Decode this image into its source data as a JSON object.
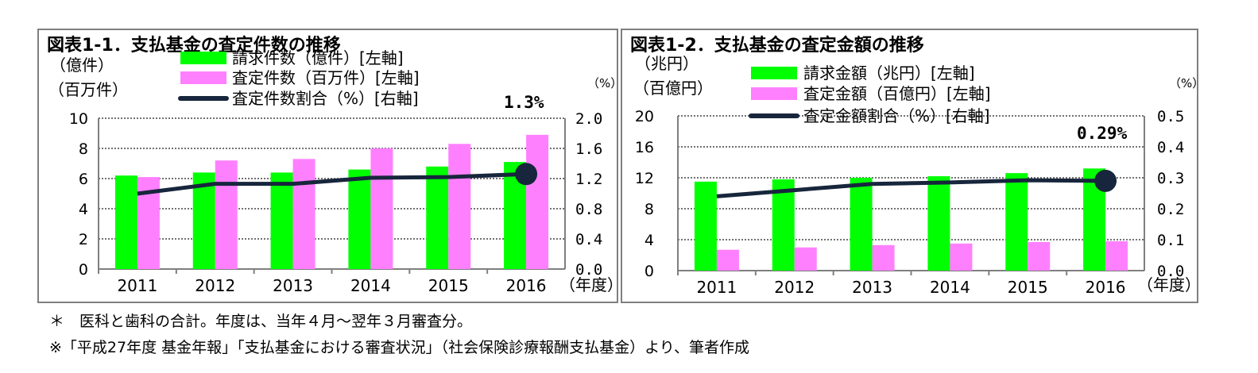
{
  "charts": [
    {
      "title": "図表1-1．支払基金の査定件数の推移",
      "left_unit_1": "（億件）",
      "left_unit_2": "（百万件）",
      "right_unit": "（%）",
      "xlabel": "（年度）",
      "left_ticks": [
        "10",
        "8",
        "6",
        "4",
        "2",
        "0"
      ],
      "right_ticks": [
        "2.0",
        "1.6",
        "1.2",
        "0.8",
        "0.4",
        "0.0"
      ],
      "annotation": "1.3%",
      "legend": [
        "請求件数（億件）[左軸]",
        "査定件数（百万件）[左軸]",
        "査定件数割合（%）[右軸]"
      ]
    },
    {
      "title": "図表1-2．支払基金の査定金額の推移",
      "left_unit_1": "（兆円）",
      "left_unit_2": "（百億円）",
      "right_unit": "（%）",
      "xlabel": "（年度）",
      "left_ticks": [
        "20",
        "16",
        "12",
        "8",
        "4",
        "0"
      ],
      "right_ticks": [
        "0.5",
        "0.4",
        "0.3",
        "0.2",
        "0.1",
        "0.0"
      ],
      "annotation": "0.29%",
      "legend": [
        "請求金額（兆円）[左軸]",
        "査定金額（百億円）[左軸]",
        "査定金額割合（%）[右軸]"
      ]
    }
  ],
  "chart_data": [
    {
      "type": "bar",
      "title": "図表1-1．支払基金の査定件数の推移",
      "categories": [
        "2011",
        "2012",
        "2013",
        "2014",
        "2015",
        "2016"
      ],
      "ylim_left": [
        0,
        10
      ],
      "ylim_right": [
        0,
        2.0
      ],
      "grid": true,
      "legend_position": "top",
      "series": [
        {
          "name": "請求件数（億件）[左軸]",
          "type": "bar",
          "axis": "left",
          "color": "#00ff00",
          "values": [
            6.2,
            6.4,
            6.4,
            6.6,
            6.8,
            7.1
          ]
        },
        {
          "name": "査定件数（百万件）[左軸]",
          "type": "bar",
          "axis": "left",
          "color": "#ff80ff",
          "values": [
            6.1,
            7.2,
            7.3,
            8.0,
            8.3,
            8.9
          ]
        },
        {
          "name": "査定件数割合（%）[右軸]",
          "type": "line",
          "axis": "right",
          "color": "#17263c",
          "values": [
            1.0,
            1.13,
            1.13,
            1.21,
            1.22,
            1.26
          ]
        }
      ]
    },
    {
      "type": "bar",
      "title": "図表1-2．支払基金の査定金額の推移",
      "categories": [
        "2011",
        "2012",
        "2013",
        "2014",
        "2015",
        "2016"
      ],
      "ylim_left": [
        0,
        20
      ],
      "ylim_right": [
        0,
        0.5
      ],
      "grid": true,
      "legend_position": "top",
      "series": [
        {
          "name": "請求金額（兆円）[左軸]",
          "type": "bar",
          "axis": "left",
          "color": "#00ff00",
          "values": [
            11.5,
            11.8,
            12.0,
            12.2,
            12.6,
            13.2
          ]
        },
        {
          "name": "査定金額（百億円）[左軸]",
          "type": "bar",
          "axis": "left",
          "color": "#ff80ff",
          "values": [
            2.7,
            3.0,
            3.3,
            3.5,
            3.7,
            3.8
          ]
        },
        {
          "name": "査定金額割合（%）[右軸]",
          "type": "line",
          "axis": "right",
          "color": "#17263c",
          "values": [
            0.24,
            0.26,
            0.28,
            0.285,
            0.292,
            0.29
          ]
        }
      ]
    }
  ],
  "notes": {
    "note1": "＊　医科と歯科の合計。年度は、当年４月～翌年３月審査分。",
    "note2": "※「平成27年度 基金年報」「支払基金における審査状況」（社会保険診療報酬支払基金）より、筆者作成"
  }
}
